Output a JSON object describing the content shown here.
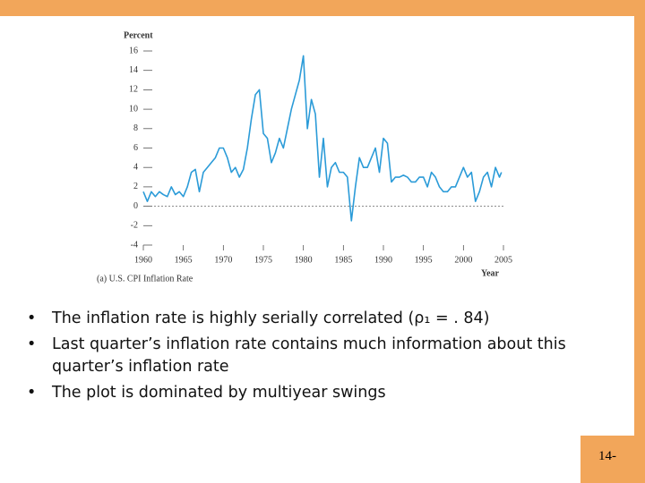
{
  "chart_data": {
    "type": "line",
    "y_label": "Percent",
    "x_label": "Year",
    "caption": "(a) U.S. CPI Inflation Rate",
    "xlim": [
      1960,
      2005
    ],
    "xticks": [
      1960,
      1965,
      1970,
      1975,
      1980,
      1985,
      1990,
      1995,
      2000,
      2005
    ],
    "ylim": [
      -4,
      16
    ],
    "yticks": [
      -4,
      -2,
      0,
      2,
      4,
      6,
      8,
      10,
      12,
      14,
      16
    ],
    "reference_line": 0,
    "series": [
      {
        "color": "#2b9bd8",
        "x": [
          1960,
          1960.5,
          1961,
          1961.5,
          1962,
          1962.5,
          1963,
          1963.5,
          1964,
          1964.5,
          1965,
          1965.5,
          1966,
          1966.5,
          1967,
          1967.5,
          1968,
          1968.5,
          1969,
          1969.5,
          1970,
          1970.5,
          1971,
          1971.5,
          1972,
          1972.5,
          1973,
          1973.5,
          1974,
          1974.5,
          1975,
          1975.5,
          1976,
          1976.5,
          1977,
          1977.5,
          1978,
          1978.5,
          1979,
          1979.5,
          1980,
          1980.5,
          1981,
          1981.5,
          1982,
          1982.5,
          1983,
          1983.5,
          1984,
          1984.5,
          1985,
          1985.5,
          1986,
          1986.5,
          1987,
          1987.5,
          1988,
          1988.5,
          1989,
          1989.5,
          1990,
          1990.5,
          1991,
          1991.5,
          1992,
          1992.5,
          1993,
          1993.5,
          1994,
          1994.5,
          1995,
          1995.5,
          1996,
          1996.5,
          1997,
          1997.5,
          1998,
          1998.5,
          1999,
          1999.5,
          2000,
          2000.5,
          2001,
          2001.5,
          2002,
          2002.5,
          2003,
          2003.5,
          2004,
          2004.5,
          2004.75
        ],
        "values": [
          1.5,
          0.5,
          1.5,
          1.0,
          1.5,
          1.2,
          1.0,
          2.0,
          1.2,
          1.5,
          1.0,
          2.0,
          3.5,
          3.8,
          1.5,
          3.5,
          4.0,
          4.5,
          5.0,
          6.0,
          6.0,
          5.0,
          3.5,
          4.0,
          3.0,
          3.8,
          6.0,
          9.0,
          11.5,
          12.0,
          7.5,
          7.0,
          4.5,
          5.5,
          7.0,
          6.0,
          8.0,
          10.0,
          11.5,
          13.0,
          15.5,
          8.0,
          11.0,
          9.5,
          3.0,
          7.0,
          2.0,
          4.0,
          4.5,
          3.5,
          3.5,
          3.0,
          -1.5,
          2.0,
          5.0,
          4.0,
          4.0,
          5.0,
          6.0,
          3.5,
          7.0,
          6.5,
          2.5,
          3.0,
          3.0,
          3.2,
          3.0,
          2.5,
          2.5,
          3.0,
          3.0,
          2.0,
          3.5,
          3.0,
          2.0,
          1.5,
          1.5,
          2.0,
          2.0,
          3.0,
          4.0,
          3.0,
          3.5,
          0.5,
          1.5,
          3.0,
          3.5,
          2.0,
          4.0,
          3.0,
          3.5
        ]
      }
    ]
  },
  "bullets": [
    "The inflation rate is highly serially correlated (ρ₁ = . 84)",
    "Last quarter’s inflation rate contains much information about this quarter’s inflation rate",
    "The plot is dominated by multiyear swings"
  ],
  "page_number": "14-"
}
